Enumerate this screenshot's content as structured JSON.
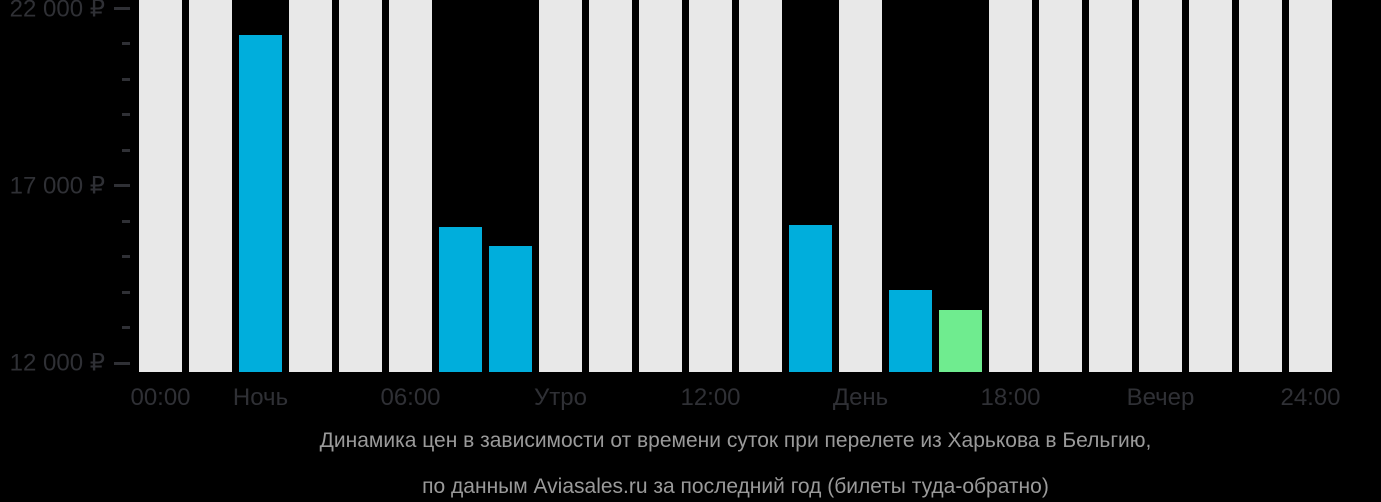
{
  "caption": {
    "line1": "Динамика цен в зависимости от времени суток при перелете из Харькова в Бельгию,",
    "line2": "по данным Aviasales.ru за последний год (билеты туда-обратно)"
  },
  "chart_data": {
    "type": "bar",
    "title": "Динамика цен в зависимости от времени суток при перелете из Харькова в Бельгию, по данным Aviasales.ru за последний год (билеты туда-обратно)",
    "currency": "RUB",
    "currency_symbol": "₽",
    "x_unit": "hour of day",
    "ylim": [
      11750,
      22250
    ],
    "grid": false,
    "legend": "none",
    "bars": [
      {
        "hour": 0,
        "value": null,
        "kind": "empty"
      },
      {
        "hour": 1,
        "value": null,
        "kind": "empty"
      },
      {
        "hour": 2,
        "value": 21250,
        "kind": "price"
      },
      {
        "hour": 3,
        "value": null,
        "kind": "empty"
      },
      {
        "hour": 4,
        "value": null,
        "kind": "empty"
      },
      {
        "hour": 5,
        "value": null,
        "kind": "empty"
      },
      {
        "hour": 6,
        "value": 15850,
        "kind": "price"
      },
      {
        "hour": 7,
        "value": 15300,
        "kind": "price"
      },
      {
        "hour": 8,
        "value": null,
        "kind": "empty"
      },
      {
        "hour": 9,
        "value": null,
        "kind": "empty"
      },
      {
        "hour": 10,
        "value": null,
        "kind": "empty"
      },
      {
        "hour": 11,
        "value": null,
        "kind": "empty"
      },
      {
        "hour": 12,
        "value": null,
        "kind": "empty"
      },
      {
        "hour": 13,
        "value": 15900,
        "kind": "price"
      },
      {
        "hour": 14,
        "value": null,
        "kind": "empty"
      },
      {
        "hour": 15,
        "value": 14050,
        "kind": "price"
      },
      {
        "hour": 16,
        "value": 13500,
        "kind": "min_price"
      },
      {
        "hour": 17,
        "value": null,
        "kind": "empty"
      },
      {
        "hour": 18,
        "value": null,
        "kind": "empty"
      },
      {
        "hour": 19,
        "value": null,
        "kind": "empty"
      },
      {
        "hour": 20,
        "value": null,
        "kind": "empty"
      },
      {
        "hour": 21,
        "value": null,
        "kind": "empty"
      },
      {
        "hour": 22,
        "value": null,
        "kind": "empty"
      },
      {
        "hour": 23,
        "value": null,
        "kind": "empty"
      }
    ],
    "y_axis": {
      "major_ticks": [
        {
          "value": 22000,
          "label": "22 000 ₽"
        },
        {
          "value": 17000,
          "label": "17 000 ₽"
        },
        {
          "value": 12000,
          "label": "12 000 ₽"
        }
      ],
      "minor_tick_values": [
        21000,
        20000,
        19000,
        18000,
        16000,
        15000,
        14000,
        13000
      ]
    },
    "x_axis": {
      "ticks": [
        {
          "label": "00:00",
          "bar_index": 0
        },
        {
          "label": "Ночь",
          "bar_index": 2
        },
        {
          "label": "06:00",
          "bar_index": 5
        },
        {
          "label": "Утро",
          "bar_index": 8
        },
        {
          "label": "12:00",
          "bar_index": 11
        },
        {
          "label": "День",
          "bar_index": 14
        },
        {
          "label": "18:00",
          "bar_index": 17
        },
        {
          "label": "Вечер",
          "bar_index": 20
        },
        {
          "label": "24:00",
          "bar_index": 23
        }
      ]
    },
    "colors": {
      "background": "#000000",
      "bar_empty": "#E8E8E8",
      "bar_price": "#00AEDC",
      "bar_min_price": "#6FEC8F",
      "axis_text": "#2F3035",
      "tick_mark": "#2F3035",
      "caption_text": "#9A9A9A"
    }
  }
}
